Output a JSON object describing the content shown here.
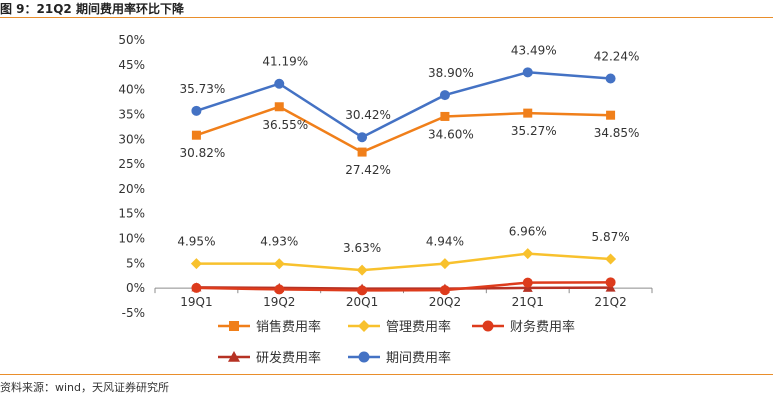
{
  "title": "图 9：21Q2 期间费用率环比下降",
  "source": "资料来源：wind，天风证券研究所",
  "colors": {
    "accent": "#e98e2b"
  },
  "chart_data": {
    "type": "line",
    "categories": [
      "19Q1",
      "19Q2",
      "20Q1",
      "20Q2",
      "21Q1",
      "21Q2"
    ],
    "ylim": [
      -0.05,
      0.5
    ],
    "yticks": [
      "-5%",
      "0%",
      "5%",
      "10%",
      "15%",
      "20%",
      "25%",
      "30%",
      "35%",
      "40%",
      "45%",
      "50%"
    ],
    "series": [
      {
        "name": "销售费用率",
        "color": "#f07f1a",
        "marker": "square",
        "values": [
          0.3082,
          0.3655,
          0.2742,
          0.346,
          0.3527,
          0.3485
        ],
        "labels": [
          "30.82%",
          "36.55%",
          "27.42%",
          "34.60%",
          "35.27%",
          "34.85%"
        ],
        "label_position": "below"
      },
      {
        "name": "管理费用率",
        "color": "#f8c12d",
        "marker": "diamond",
        "values": [
          0.0495,
          0.0493,
          0.0363,
          0.0494,
          0.0696,
          0.0587
        ],
        "labels": [
          "4.95%",
          "4.93%",
          "3.63%",
          "4.94%",
          "6.96%",
          "5.87%"
        ],
        "label_position": "above"
      },
      {
        "name": "财务费用率",
        "color": "#dd3b1c",
        "marker": "circle",
        "values": [
          0.0005,
          -0.0025,
          -0.0045,
          -0.004,
          0.0112,
          0.0118
        ],
        "labels": [],
        "label_position": "none"
      },
      {
        "name": "研发费用率",
        "color": "#b63224",
        "marker": "triangle",
        "values": [
          0.0015,
          0.0005,
          -0.001,
          -0.001,
          0.0005,
          0.001
        ],
        "labels": [],
        "label_position": "none"
      },
      {
        "name": "期间费用率",
        "color": "#4472c4",
        "marker": "circle",
        "values": [
          0.3573,
          0.4119,
          0.3042,
          0.389,
          0.4349,
          0.4224
        ],
        "labels": [
          "35.73%",
          "41.19%",
          "30.42%",
          "38.90%",
          "43.49%",
          "42.24%"
        ],
        "label_position": "above"
      }
    ]
  }
}
